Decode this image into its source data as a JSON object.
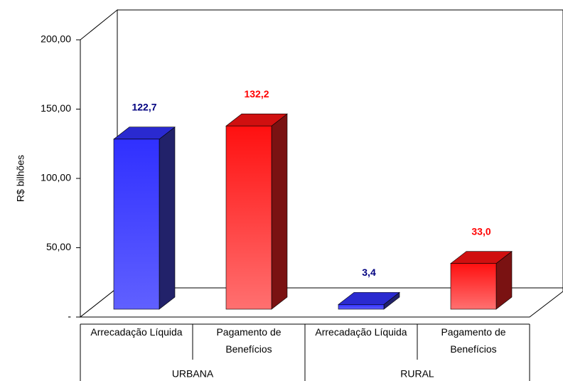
{
  "chart_data": {
    "type": "bar3d",
    "y_label": "R$ bilhões",
    "categories": [
      "Arrecadação Líquida",
      "Pagamento de Benefícios",
      "Arrecadação Líquida",
      "Pagamento de Benefícios"
    ],
    "groups": [
      "URBANA",
      "RURAL"
    ],
    "values": [
      122.7,
      132.2,
      3.4,
      33.0
    ],
    "value_labels": [
      "122,7",
      "132,2",
      "3,4",
      "33,0"
    ],
    "colors": [
      "#3333ff",
      "#ff0000",
      "#3333ff",
      "#ff0000"
    ],
    "value_label_colors": [
      "#000080",
      "#ff0000",
      "#000080",
      "#ff0000"
    ],
    "ylim": [
      0,
      200
    ],
    "yticks": [
      {
        "value": 0,
        "label": "-"
      },
      {
        "value": 50,
        "label": "50,00"
      },
      {
        "value": 100,
        "label": "100,00"
      },
      {
        "value": 150,
        "label": "150,00"
      },
      {
        "value": 200,
        "label": "200,00"
      }
    ]
  }
}
